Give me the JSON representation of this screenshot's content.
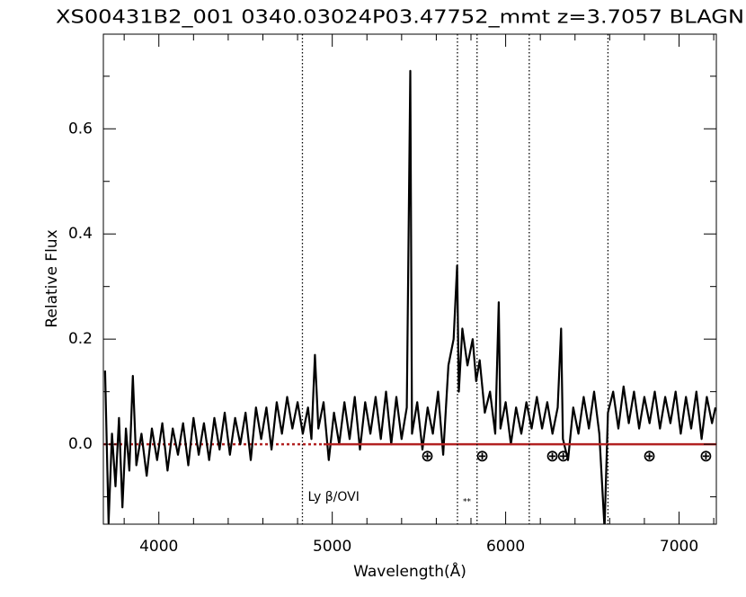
{
  "chart_data": {
    "type": "line",
    "title": "XS00431B2_001 0340.03024P03.47752_mmt z=3.7057 BLAGN",
    "x_label": "Wavelength(Å)",
    "y_label": "Relative Flux",
    "xlim": [
      3680,
      7215
    ],
    "ylim": [
      -0.152,
      0.78
    ],
    "xticks": [
      4000,
      5000,
      6000,
      7000
    ],
    "yticks": [
      {
        "value": 0,
        "label": "0.0"
      },
      0.2,
      0.4,
      0.6
    ],
    "xminorticks": [
      3800,
      4200,
      4400,
      4600,
      4800,
      5200,
      5400,
      5600,
      5800,
      6200,
      6400,
      6600,
      6800,
      7200
    ],
    "yminorticks": [
      -0.1,
      0.1,
      0.3,
      0.5,
      0.7
    ],
    "x": [
      3690,
      3710,
      3730,
      3750,
      3770,
      3790,
      3810,
      3830,
      3850,
      3870,
      3900,
      3930,
      3960,
      3990,
      4020,
      4050,
      4080,
      4110,
      4140,
      4170,
      4200,
      4230,
      4260,
      4290,
      4320,
      4350,
      4380,
      4410,
      4440,
      4470,
      4500,
      4530,
      4560,
      4590,
      4620,
      4650,
      4680,
      4710,
      4740,
      4770,
      4800,
      4830,
      4860,
      4880,
      4900,
      4920,
      4950,
      4980,
      5010,
      5040,
      5070,
      5100,
      5130,
      5160,
      5190,
      5220,
      5250,
      5280,
      5310,
      5340,
      5370,
      5400,
      5430,
      5450,
      5460,
      5490,
      5520,
      5550,
      5580,
      5610,
      5640,
      5670,
      5700,
      5720,
      5730,
      5750,
      5780,
      5810,
      5830,
      5850,
      5880,
      5910,
      5940,
      5960,
      5970,
      6000,
      6030,
      6060,
      6090,
      6120,
      6150,
      6180,
      6210,
      6240,
      6270,
      6300,
      6320,
      6330,
      6360,
      6390,
      6420,
      6450,
      6480,
      6510,
      6540,
      6570,
      6590,
      6620,
      6650,
      6680,
      6710,
      6740,
      6770,
      6800,
      6830,
      6860,
      6890,
      6920,
      6950,
      6980,
      7010,
      7040,
      7070,
      7100,
      7130,
      7160,
      7190,
      7210
    ],
    "series": [
      {
        "color": "#000000",
        "values": [
          0.14,
          -0.15,
          0.02,
          -0.08,
          0.05,
          -0.12,
          0.03,
          -0.05,
          0.13,
          -0.04,
          0.02,
          -0.06,
          0.03,
          -0.03,
          0.04,
          -0.05,
          0.03,
          -0.02,
          0.04,
          -0.04,
          0.05,
          -0.02,
          0.04,
          -0.03,
          0.05,
          -0.01,
          0.06,
          -0.02,
          0.05,
          0.0,
          0.06,
          -0.03,
          0.07,
          0.01,
          0.07,
          -0.01,
          0.08,
          0.02,
          0.09,
          0.03,
          0.08,
          0.02,
          0.07,
          0.01,
          0.17,
          0.03,
          0.08,
          -0.03,
          0.06,
          0.0,
          0.08,
          0.01,
          0.09,
          -0.01,
          0.08,
          0.02,
          0.09,
          0.01,
          0.1,
          0.0,
          0.09,
          0.01,
          0.07,
          0.71,
          0.02,
          0.08,
          -0.01,
          0.07,
          0.02,
          0.1,
          -0.02,
          0.15,
          0.2,
          0.34,
          0.1,
          0.22,
          0.15,
          0.2,
          0.12,
          0.16,
          0.06,
          0.1,
          0.02,
          0.27,
          0.03,
          0.08,
          0.0,
          0.07,
          0.02,
          0.08,
          0.03,
          0.09,
          0.03,
          0.08,
          0.02,
          0.07,
          0.22,
          0.01,
          -0.03,
          0.07,
          0.02,
          0.09,
          0.03,
          0.1,
          0.02,
          -0.16,
          0.06,
          0.1,
          0.03,
          0.11,
          0.04,
          0.1,
          0.03,
          0.09,
          0.04,
          0.1,
          0.03,
          0.09,
          0.04,
          0.1,
          0.02,
          0.09,
          0.03,
          0.1,
          0.01,
          0.09,
          0.04,
          0.07
        ]
      }
    ],
    "reference_line": {
      "value": 0,
      "color": "#b22222",
      "dotted_until": 4950
    },
    "line_markers": [
      {
        "x": 4828,
        "label": "Ly β/OVI"
      },
      {
        "x": 5722,
        "label": "**"
      },
      {
        "x": 5835
      },
      {
        "x": 6136
      },
      {
        "x": 6590
      }
    ],
    "telluric": {
      "label": "⊕",
      "x": [
        5549,
        5865,
        6269,
        6332,
        6829,
        7155
      ]
    }
  }
}
